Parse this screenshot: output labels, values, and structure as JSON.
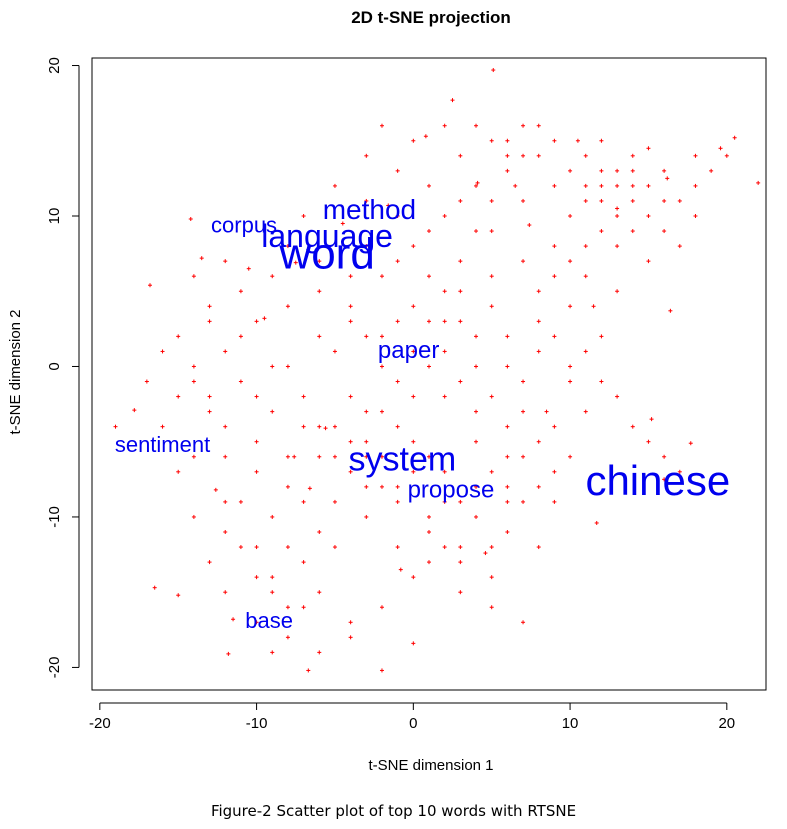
{
  "caption": "Figure-2 Scatter plot of top 10 words with RTSNE",
  "chart_data": {
    "type": "scatter",
    "title": "2D t-SNE projection",
    "xlabel": "t-SNE dimension 1",
    "ylabel": "t-SNE dimension 2",
    "xlim": [
      -20.5,
      22.5
    ],
    "ylim": [
      -21.5,
      20.5
    ],
    "xticks": [
      -20,
      -10,
      0,
      10,
      20
    ],
    "yticks": [
      -20,
      -10,
      0,
      10,
      20
    ],
    "point_color": "#ff0000",
    "label_color": "#0000ee",
    "grid": false,
    "points": [
      [
        -17.8,
        -2.9
      ],
      [
        -19,
        -4
      ],
      [
        -16.8,
        5.4
      ],
      [
        -16.5,
        -14.7
      ],
      [
        -15,
        -15.2
      ],
      [
        -14.2,
        9.8
      ],
      [
        -13.5,
        7.2
      ],
      [
        -12.6,
        -8.2
      ],
      [
        -11.8,
        -19.1
      ],
      [
        -11.5,
        -16.8
      ],
      [
        -10.5,
        6.5
      ],
      [
        -9.5,
        3.2
      ],
      [
        -9,
        -19
      ],
      [
        -7.5,
        6.9
      ],
      [
        -7.6,
        -6
      ],
      [
        -6.6,
        -8.1
      ],
      [
        -6.7,
        -20.2
      ],
      [
        -5.6,
        -4.1
      ],
      [
        -4.5,
        9.5
      ],
      [
        -2,
        -20.2
      ],
      [
        -1.6,
        10.7
      ],
      [
        -0.8,
        -13.5
      ],
      [
        0,
        -18.4
      ],
      [
        0.8,
        15.3
      ],
      [
        2.5,
        17.7
      ],
      [
        4.1,
        12.2
      ],
      [
        5.1,
        19.7
      ],
      [
        4.6,
        -12.4
      ],
      [
        6.5,
        12
      ],
      [
        7.4,
        9.4
      ],
      [
        8,
        5
      ],
      [
        8.5,
        -3
      ],
      [
        9,
        -9
      ],
      [
        10,
        -1
      ],
      [
        10.5,
        15
      ],
      [
        11.7,
        -10.4
      ],
      [
        11.5,
        4
      ],
      [
        12,
        11
      ],
      [
        13,
        10.5
      ],
      [
        14,
        12
      ],
      [
        15.2,
        -3.5
      ],
      [
        16.2,
        12.5
      ],
      [
        16.4,
        3.7
      ],
      [
        17.7,
        -5.1
      ],
      [
        18,
        14
      ],
      [
        19.6,
        14.5
      ],
      [
        20.5,
        15.2
      ],
      [
        22,
        12.2
      ],
      [
        -14,
        0
      ],
      [
        -13,
        -3
      ],
      [
        -12,
        -6
      ],
      [
        -11,
        -9
      ],
      [
        -10,
        -12
      ],
      [
        -9,
        -14
      ],
      [
        -8,
        -16
      ],
      [
        -7,
        -13
      ],
      [
        -6,
        -11
      ],
      [
        -5,
        -9
      ],
      [
        -4,
        -7
      ],
      [
        -3,
        -5
      ],
      [
        -2,
        -3
      ],
      [
        -1,
        -1
      ],
      [
        0,
        1
      ],
      [
        1,
        3
      ],
      [
        2,
        5
      ],
      [
        3,
        7
      ],
      [
        4,
        9
      ],
      [
        5,
        11
      ],
      [
        6,
        13
      ],
      [
        7,
        14
      ],
      [
        -15,
        2
      ],
      [
        -13,
        4
      ],
      [
        -11,
        2
      ],
      [
        -9,
        0
      ],
      [
        -7,
        -2
      ],
      [
        -5,
        -4
      ],
      [
        -3,
        -6
      ],
      [
        -1,
        -8
      ],
      [
        1,
        -10
      ],
      [
        3,
        -12
      ],
      [
        5,
        -14
      ],
      [
        -12,
        -11
      ],
      [
        -10,
        -14
      ],
      [
        -8,
        -12
      ],
      [
        -6,
        -15
      ],
      [
        -4,
        -17
      ],
      [
        -2,
        -16
      ],
      [
        0,
        -14
      ],
      [
        2,
        -12
      ],
      [
        4,
        -10
      ],
      [
        6,
        -8
      ],
      [
        -14,
        -6
      ],
      [
        -12,
        -4
      ],
      [
        -10,
        -2
      ],
      [
        -8,
        0
      ],
      [
        -6,
        2
      ],
      [
        -4,
        4
      ],
      [
        -2,
        6
      ],
      [
        0,
        8
      ],
      [
        2,
        10
      ],
      [
        4,
        12
      ],
      [
        6,
        14
      ],
      [
        8,
        16
      ],
      [
        -3,
        14
      ],
      [
        -1,
        13
      ],
      [
        1,
        12
      ],
      [
        3,
        14
      ],
      [
        5,
        15
      ],
      [
        7,
        16
      ],
      [
        9,
        15
      ],
      [
        11,
        14
      ],
      [
        13,
        13
      ],
      [
        15,
        12
      ],
      [
        17,
        11
      ],
      [
        19,
        13
      ],
      [
        10,
        10
      ],
      [
        11,
        12
      ],
      [
        12,
        13
      ],
      [
        13,
        12
      ],
      [
        14,
        11
      ],
      [
        15,
        10
      ],
      [
        16,
        9
      ],
      [
        12,
        9
      ],
      [
        13,
        8
      ],
      [
        14,
        9
      ],
      [
        11,
        8
      ],
      [
        10,
        7
      ],
      [
        9,
        6
      ],
      [
        8,
        3
      ],
      [
        9,
        2
      ],
      [
        10,
        4
      ],
      [
        11,
        1
      ],
      [
        12,
        -1
      ],
      [
        13,
        -2
      ],
      [
        14,
        -4
      ],
      [
        15,
        -5
      ],
      [
        16,
        -6
      ],
      [
        17,
        -7
      ],
      [
        16,
        -7.5
      ],
      [
        -5,
        1
      ],
      [
        -3,
        2
      ],
      [
        -1,
        3
      ],
      [
        1,
        0
      ],
      [
        3,
        -1
      ],
      [
        5,
        -2
      ],
      [
        7,
        -3
      ],
      [
        6,
        0
      ],
      [
        4,
        2
      ],
      [
        2,
        3
      ],
      [
        0,
        4
      ],
      [
        -2,
        0
      ],
      [
        -4,
        -2
      ],
      [
        -6,
        -6
      ],
      [
        -8,
        -8
      ],
      [
        -10,
        -5
      ],
      [
        -12,
        -9
      ],
      [
        -9,
        -10
      ],
      [
        -7,
        -9
      ],
      [
        -5,
        -12
      ],
      [
        -3,
        -10
      ],
      [
        -1,
        -12
      ],
      [
        1,
        -13
      ],
      [
        3,
        -15
      ],
      [
        5,
        -16
      ],
      [
        7,
        -17
      ],
      [
        6,
        -11
      ],
      [
        8,
        -12
      ],
      [
        7,
        -9
      ],
      [
        6,
        -6
      ],
      [
        4,
        -5
      ],
      [
        2,
        -7
      ],
      [
        0,
        -5
      ],
      [
        -2,
        -8
      ],
      [
        -16,
        -4
      ],
      [
        -15,
        -7
      ],
      [
        -14,
        -10
      ],
      [
        -13,
        -13
      ],
      [
        -12,
        -15
      ],
      [
        -10,
        -17
      ],
      [
        -8,
        -18
      ],
      [
        -6,
        -19
      ],
      [
        -4,
        -18
      ],
      [
        -13,
        3
      ],
      [
        -14,
        6
      ],
      [
        -12,
        7
      ],
      [
        -11,
        5
      ],
      [
        -9,
        6
      ],
      [
        -8,
        8
      ],
      [
        -6,
        7
      ],
      [
        -4,
        6
      ],
      [
        -3,
        8
      ],
      [
        -1,
        7
      ],
      [
        1,
        6
      ],
      [
        3,
        5
      ],
      [
        5,
        6
      ],
      [
        7,
        7
      ],
      [
        9,
        8
      ],
      [
        11,
        6
      ],
      [
        13,
        5
      ],
      [
        15,
        7
      ],
      [
        17,
        8
      ],
      [
        18,
        10
      ],
      [
        16,
        11
      ],
      [
        14,
        14
      ],
      [
        12,
        15
      ],
      [
        15,
        14.5
      ],
      [
        2,
        -2
      ],
      [
        4,
        -3
      ],
      [
        6,
        -4
      ],
      [
        8,
        -5
      ],
      [
        10,
        -6
      ],
      [
        9,
        -7
      ],
      [
        7,
        -6
      ],
      [
        5,
        -7
      ],
      [
        3,
        -9
      ],
      [
        1,
        -6
      ],
      [
        -1,
        -4
      ],
      [
        -3,
        -3
      ],
      [
        -11,
        -1
      ],
      [
        -13,
        -2
      ],
      [
        -15,
        -2
      ],
      [
        -17,
        -1
      ],
      [
        -16,
        1
      ],
      [
        -14,
        -1
      ],
      [
        -12,
        1
      ],
      [
        -10,
        3
      ],
      [
        -8,
        4
      ],
      [
        -6,
        5
      ],
      [
        -4,
        3
      ],
      [
        -2,
        2
      ],
      [
        0,
        -2
      ],
      [
        2,
        1
      ],
      [
        4,
        0
      ],
      [
        6,
        2
      ],
      [
        8,
        1
      ],
      [
        10,
        0
      ],
      [
        12,
        2
      ],
      [
        11,
        -3
      ],
      [
        9,
        -4
      ],
      [
        7,
        -1
      ],
      [
        5,
        4
      ],
      [
        3,
        3
      ],
      [
        -7,
        10
      ],
      [
        -5,
        12
      ],
      [
        -3,
        11
      ],
      [
        -1,
        10
      ],
      [
        1,
        9
      ],
      [
        3,
        11
      ],
      [
        5,
        9
      ],
      [
        7,
        11
      ],
      [
        9,
        12
      ],
      [
        11,
        11
      ],
      [
        13,
        10
      ],
      [
        2,
        16
      ],
      [
        0,
        15
      ],
      [
        -2,
        16
      ],
      [
        4,
        16
      ],
      [
        6,
        15
      ],
      [
        8,
        14
      ],
      [
        10,
        13
      ],
      [
        12,
        12
      ],
      [
        14,
        13
      ],
      [
        16,
        13
      ],
      [
        18,
        12
      ],
      [
        20,
        14
      ],
      [
        -10,
        -7
      ],
      [
        -8,
        -6
      ],
      [
        -6,
        -4
      ],
      [
        -4,
        -5
      ],
      [
        -2,
        -6
      ],
      [
        0,
        -7
      ],
      [
        2,
        -9
      ],
      [
        4,
        -8
      ],
      [
        6,
        -9
      ],
      [
        8,
        -8
      ],
      [
        -9,
        -3
      ],
      [
        -7,
        -4
      ],
      [
        -5,
        -6
      ],
      [
        -3,
        -8
      ],
      [
        -1,
        -9
      ],
      [
        1,
        -11
      ],
      [
        3,
        -13
      ],
      [
        5,
        -12
      ],
      [
        -11,
        -12
      ],
      [
        -9,
        -15
      ],
      [
        -7,
        -16
      ]
    ],
    "word_labels": [
      {
        "text": "word",
        "x": -5.5,
        "y": 7.3
      },
      {
        "text": "language",
        "x": -5.5,
        "y": 8.5
      },
      {
        "text": "method",
        "x": -2.8,
        "y": 10.3
      },
      {
        "text": "corpus",
        "x": -10.8,
        "y": 9.3
      },
      {
        "text": "paper",
        "x": -0.3,
        "y": 1.0
      },
      {
        "text": "sentiment",
        "x": -16.0,
        "y": -5.3
      },
      {
        "text": "system",
        "x": -0.7,
        "y": -6.3
      },
      {
        "text": "propose",
        "x": 2.4,
        "y": -8.3
      },
      {
        "text": "chinese",
        "x": 15.6,
        "y": -7.8
      },
      {
        "text": "base",
        "x": -9.2,
        "y": -17.0
      }
    ]
  }
}
